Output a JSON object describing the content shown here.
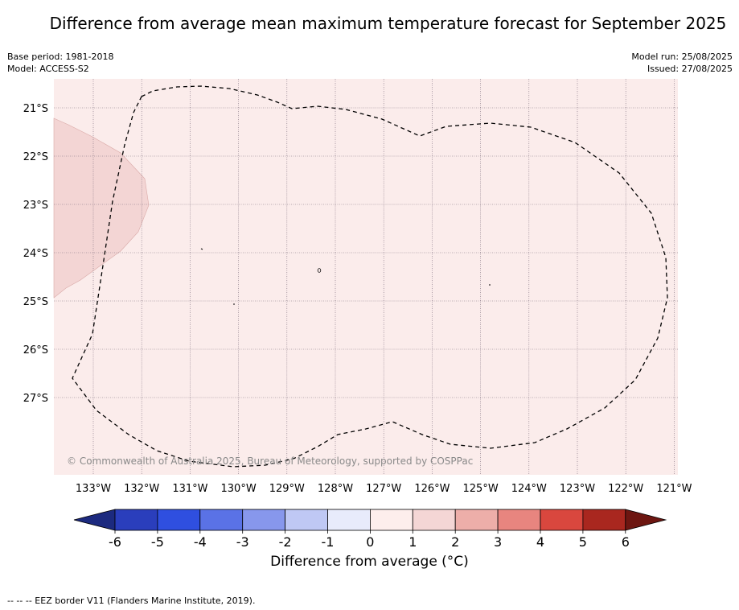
{
  "title": "Difference from average mean maximum temperature forecast for September 2025",
  "meta": {
    "base_period": "Base period: 1981-2018",
    "model": "Model: ACCESS-S2",
    "model_run": "Model run: 25/08/2025",
    "issued": "Issued: 27/08/2025"
  },
  "map": {
    "lat_labels": [
      "21°S",
      "22°S",
      "23°S",
      "24°S",
      "25°S",
      "26°S",
      "27°S"
    ],
    "lon_labels": [
      "133°W",
      "132°W",
      "131°W",
      "130°W",
      "129°W",
      "128°W",
      "127°W",
      "126°W",
      "125°W",
      "124°W",
      "123°W",
      "122°W",
      "121°W"
    ],
    "copyright": "© Commonwealth of Australia 2025, Bureau of Meteorology, supported by COSPPac",
    "colors": {
      "background_anomaly": "#fbeceb",
      "warm_patch": "#f3d5d4",
      "eez_line": "#000000"
    }
  },
  "colorbar": {
    "label": "Difference from average (°C)",
    "ticks": [
      "-6",
      "-5",
      "-4",
      "-3",
      "-2",
      "-1",
      "0",
      "1",
      "2",
      "3",
      "4",
      "5",
      "6"
    ],
    "colors": [
      "#1c2a7f",
      "#2a3ebc",
      "#2f4fe0",
      "#5a72e6",
      "#8797ec",
      "#bfc8f4",
      "#e8ebfb",
      "#fdeeec",
      "#f4d6d5",
      "#edaea9",
      "#e8857f",
      "#d9473e",
      "#a9271f",
      "#6d1611"
    ]
  },
  "footnote": "--  --  -- EEZ border V11 (Flanders Marine Institute, 2019)."
}
